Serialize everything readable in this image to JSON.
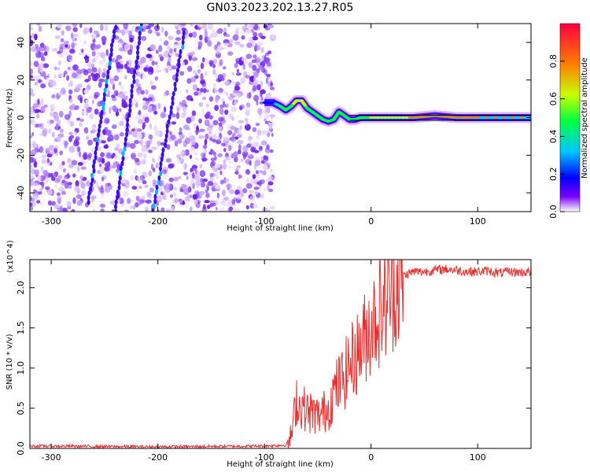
{
  "title": "GN03.2023.202.13.27.R05",
  "chart_data": [
    {
      "type": "heatmap",
      "title": "GN03.2023.202.13.27.R05",
      "xlabel": "Height of straight line (km)",
      "ylabel": "Frequency (Hz)",
      "xlim": [
        -320,
        150
      ],
      "ylim": [
        -50,
        50
      ],
      "x_ticks": [
        -300,
        -200,
        -100,
        0,
        100
      ],
      "y_ticks": [
        -40,
        -20,
        0,
        20,
        40
      ],
      "colorbar": {
        "label": "Normalized spectral amplitude",
        "range": [
          0,
          1
        ],
        "ticks": [
          "0.0",
          "0.2",
          "0.4",
          "0.6",
          "0.8"
        ],
        "colors": [
          "#ffffff",
          "#7a00ff",
          "#0000ff",
          "#00c8ff",
          "#00ff40",
          "#c8ff00",
          "#ff8000",
          "#ff0040"
        ]
      },
      "noise_region": {
        "x_range": [
          -320,
          -92
        ],
        "freq_range": [
          -50,
          50
        ],
        "amplitude": "0.1-0.4"
      },
      "signal_track": {
        "x": [
          -100,
          -92,
          -85,
          -80,
          -75,
          -70,
          -65,
          -60,
          -55,
          -50,
          -45,
          -40,
          -35,
          -30,
          -25,
          -20,
          -15,
          -10,
          -5,
          0,
          20,
          40,
          60,
          80,
          100,
          150
        ],
        "freq": [
          8,
          8,
          6,
          4,
          6,
          9,
          9,
          5,
          3,
          1,
          -1,
          -2,
          -1,
          3,
          1,
          -1,
          -1,
          0,
          0,
          0,
          0,
          0,
          1,
          0,
          0,
          0
        ],
        "amplitude": [
          0.3,
          0.3,
          0.5,
          0.6,
          0.6,
          0.7,
          0.75,
          0.6,
          0.6,
          0.55,
          0.5,
          0.5,
          0.55,
          0.6,
          0.55,
          0.55,
          0.55,
          0.6,
          0.6,
          0.65,
          0.75,
          0.8,
          0.85,
          0.85,
          0.85,
          0.9
        ]
      }
    },
    {
      "type": "line",
      "xlabel": "Height of straight line (km)",
      "ylabel": "SNR (10 * v/v)",
      "y_exponent_label": "(x10^4)",
      "xlim": [
        -320,
        150
      ],
      "ylim": [
        0,
        23500
      ],
      "x_ticks": [
        -300,
        -200,
        -100,
        0,
        100
      ],
      "y_ticks": [
        "0.0",
        "0.5",
        "1.0",
        "1.5",
        "2.0"
      ],
      "color": "#e83030",
      "series": [
        {
          "x": [
            -320,
            -200,
            -100,
            -80,
            -75,
            -72,
            -70,
            -68,
            -65,
            -60,
            -55,
            -50,
            -45,
            -40,
            -35,
            -30,
            -25,
            -20,
            -15,
            -10,
            -5,
            0,
            5,
            10,
            15,
            20,
            25,
            30,
            40,
            50,
            60,
            70,
            80,
            90,
            100,
            110,
            120,
            130,
            140,
            150
          ],
          "values": [
            300,
            200,
            300,
            400,
            1500,
            4000,
            6500,
            5000,
            5500,
            4500,
            4500,
            4000,
            4500,
            5000,
            7000,
            8000,
            9000,
            10500,
            11500,
            12500,
            14000,
            15500,
            16500,
            17500,
            18500,
            20000,
            20500,
            21500,
            22000,
            22000,
            22200,
            22300,
            22200,
            22000,
            22000,
            22100,
            21800,
            22000,
            21900,
            22000
          ]
        }
      ]
    }
  ]
}
